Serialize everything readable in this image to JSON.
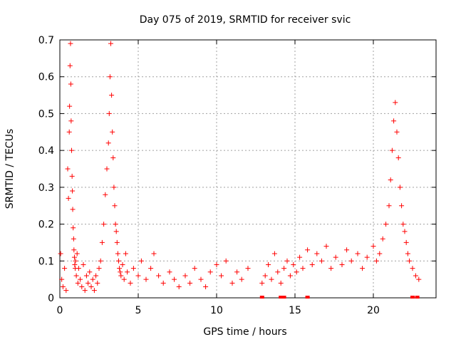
{
  "chart_data": {
    "type": "scatter",
    "title": "Day 075 of 2019, SRMTID for receiver svic",
    "xlabel": "GPS time / hours",
    "ylabel": "SRMTID / TECUs",
    "xlim": [
      0,
      24
    ],
    "ylim": [
      0,
      0.7
    ],
    "x_ticks": [
      0,
      5,
      10,
      15,
      20
    ],
    "y_ticks": [
      0,
      0.1,
      0.2,
      0.3,
      0.4,
      0.5,
      0.6,
      0.7
    ],
    "x_tick_labels": [
      "0",
      "5",
      "10",
      "15",
      "20"
    ],
    "y_tick_labels": [
      "0",
      "0.1",
      "0.2",
      "0.3",
      "0.4",
      "0.5",
      "0.6",
      "0.7"
    ],
    "grid": true,
    "marker": "+",
    "color": "#ff0000",
    "series": [
      {
        "name": "SRMTID",
        "x": [
          0.05,
          0.12,
          0.2,
          0.3,
          0.4,
          0.5,
          0.55,
          0.6,
          0.62,
          0.65,
          0.68,
          0.7,
          0.72,
          0.75,
          0.78,
          0.8,
          0.82,
          0.85,
          0.88,
          0.9,
          0.93,
          0.95,
          0.98,
          1.0,
          1.05,
          1.1,
          1.15,
          1.2,
          1.3,
          1.4,
          1.5,
          1.6,
          1.7,
          1.8,
          1.9,
          2.0,
          2.1,
          2.2,
          2.3,
          2.4,
          2.5,
          2.6,
          2.7,
          2.8,
          2.9,
          3.0,
          3.1,
          3.15,
          3.2,
          3.25,
          3.3,
          3.35,
          3.4,
          3.45,
          3.5,
          3.55,
          3.6,
          3.65,
          3.7,
          3.75,
          3.8,
          3.85,
          3.9,
          4.0,
          4.1,
          4.2,
          4.3,
          4.5,
          4.7,
          5.0,
          5.2,
          5.5,
          5.8,
          6.0,
          6.3,
          6.6,
          7.0,
          7.3,
          7.6,
          8.0,
          8.3,
          8.6,
          9.0,
          9.3,
          9.6,
          10.0,
          10.3,
          10.6,
          11.0,
          11.3,
          11.6,
          12.0,
          12.9,
          13.1,
          13.3,
          13.5,
          13.7,
          13.9,
          14.1,
          14.3,
          14.5,
          14.7,
          14.9,
          15.1,
          15.3,
          15.5,
          15.8,
          16.1,
          16.4,
          16.7,
          17.0,
          17.3,
          17.6,
          18.0,
          18.3,
          18.6,
          19.0,
          19.3,
          19.6,
          20.0,
          20.2,
          20.4,
          20.6,
          20.8,
          21.0,
          21.1,
          21.2,
          21.3,
          21.4,
          21.5,
          21.6,
          21.7,
          21.8,
          21.9,
          22.0,
          22.1,
          22.2,
          22.3,
          22.5,
          22.7,
          22.9
        ],
        "y": [
          0.12,
          0.05,
          0.03,
          0.08,
          0.02,
          0.35,
          0.27,
          0.45,
          0.52,
          0.63,
          0.69,
          0.58,
          0.48,
          0.4,
          0.33,
          0.29,
          0.24,
          0.19,
          0.16,
          0.13,
          0.11,
          0.09,
          0.08,
          0.1,
          0.06,
          0.12,
          0.04,
          0.08,
          0.05,
          0.03,
          0.09,
          0.02,
          0.06,
          0.04,
          0.07,
          0.03,
          0.05,
          0.02,
          0.06,
          0.04,
          0.08,
          0.1,
          0.15,
          0.2,
          0.28,
          0.35,
          0.42,
          0.5,
          0.6,
          0.69,
          0.55,
          0.45,
          0.38,
          0.3,
          0.25,
          0.2,
          0.18,
          0.15,
          0.12,
          0.1,
          0.08,
          0.07,
          0.06,
          0.09,
          0.05,
          0.12,
          0.07,
          0.04,
          0.08,
          0.06,
          0.1,
          0.05,
          0.08,
          0.12,
          0.06,
          0.04,
          0.07,
          0.05,
          0.03,
          0.06,
          0.04,
          0.08,
          0.05,
          0.03,
          0.07,
          0.09,
          0.06,
          0.1,
          0.04,
          0.07,
          0.05,
          0.08,
          0.04,
          0.06,
          0.09,
          0.05,
          0.12,
          0.07,
          0.04,
          0.08,
          0.1,
          0.06,
          0.09,
          0.07,
          0.11,
          0.08,
          0.13,
          0.09,
          0.12,
          0.1,
          0.14,
          0.08,
          0.11,
          0.09,
          0.13,
          0.1,
          0.12,
          0.08,
          0.11,
          0.14,
          0.1,
          0.12,
          0.16,
          0.2,
          0.25,
          0.32,
          0.4,
          0.48,
          0.53,
          0.45,
          0.38,
          0.3,
          0.25,
          0.2,
          0.18,
          0.15,
          0.12,
          0.1,
          0.08,
          0.06,
          0.05
        ]
      }
    ],
    "zero_markers_x": [
      12.9,
      14.1,
      14.3,
      15.8,
      22.5,
      22.8
    ]
  }
}
